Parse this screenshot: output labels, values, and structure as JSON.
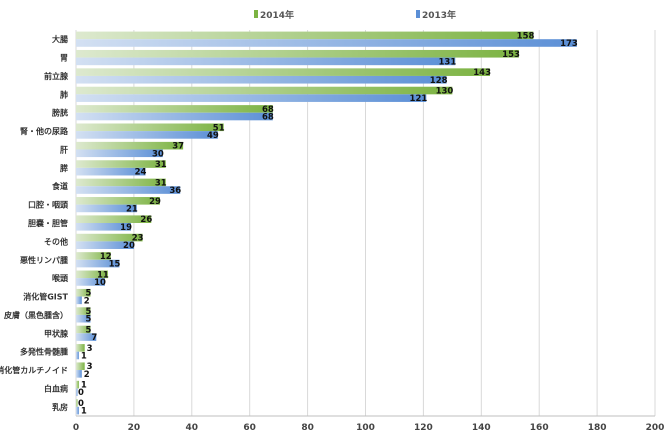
{
  "chart_data": {
    "type": "bar",
    "orientation": "horizontal",
    "categories": [
      "大腸",
      "胃",
      "前立腺",
      "肺",
      "膀胱",
      "腎・他の尿路",
      "肝",
      "膵",
      "食道",
      "口腔・咽頭",
      "胆嚢・胆管",
      "その他",
      "悪性リンパ腫",
      "喉頭",
      "消化管GIST",
      "皮膚（黒色腫含）",
      "甲状腺",
      "多発性骨髄腫",
      "消化管カルチノイド",
      "白血病",
      "乳房"
    ],
    "series": [
      {
        "name": "2014年",
        "color": "#7cb342",
        "values": [
          158,
          153,
          143,
          130,
          68,
          51,
          37,
          31,
          31,
          29,
          26,
          23,
          12,
          11,
          5,
          5,
          5,
          3,
          3,
          1,
          0
        ]
      },
      {
        "name": "2013年",
        "color": "#5b8fd6",
        "values": [
          173,
          131,
          128,
          121,
          68,
          49,
          30,
          24,
          36,
          21,
          19,
          20,
          15,
          10,
          2,
          5,
          7,
          1,
          2,
          0,
          1
        ]
      }
    ],
    "xlim": [
      0,
      200
    ],
    "xticks": [
      0,
      20,
      40,
      60,
      80,
      100,
      120,
      140,
      160,
      180,
      200
    ],
    "grid": true,
    "legend_position": "top"
  }
}
